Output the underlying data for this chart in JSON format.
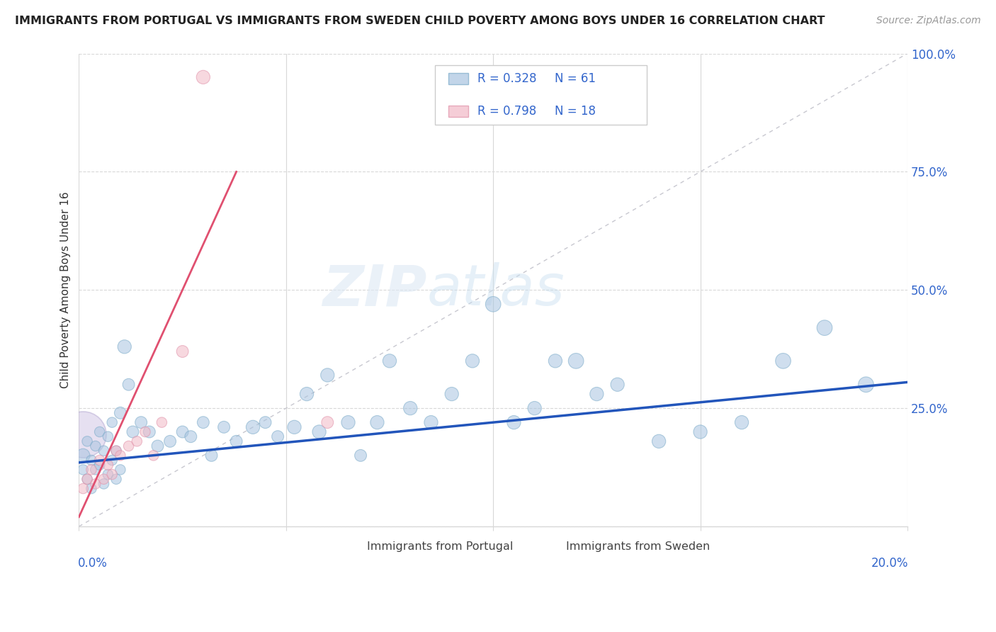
{
  "title": "IMMIGRANTS FROM PORTUGAL VS IMMIGRANTS FROM SWEDEN CHILD POVERTY AMONG BOYS UNDER 16 CORRELATION CHART",
  "source": "Source: ZipAtlas.com",
  "ylabel": "Child Poverty Among Boys Under 16",
  "xlim": [
    0.0,
    0.2
  ],
  "ylim": [
    0.0,
    1.0
  ],
  "R_portugal": 0.328,
  "N_portugal": 61,
  "R_sweden": 0.798,
  "N_sweden": 18,
  "blue_color": "#a8c4e0",
  "blue_edge_color": "#7aaac8",
  "pink_color": "#f2b8c6",
  "pink_edge_color": "#e090a8",
  "blue_line_color": "#2255bb",
  "pink_line_color": "#e05070",
  "legend_text_color": "#3366cc",
  "grid_color": "#d8d8d8",
  "ref_line_color": "#c8c8d0",
  "portugal_x": [
    0.001,
    0.001,
    0.002,
    0.002,
    0.003,
    0.003,
    0.004,
    0.004,
    0.005,
    0.005,
    0.006,
    0.006,
    0.007,
    0.007,
    0.008,
    0.008,
    0.009,
    0.009,
    0.01,
    0.01,
    0.011,
    0.012,
    0.013,
    0.015,
    0.017,
    0.019,
    0.022,
    0.025,
    0.027,
    0.03,
    0.032,
    0.035,
    0.038,
    0.042,
    0.045,
    0.048,
    0.052,
    0.055,
    0.058,
    0.06,
    0.065,
    0.068,
    0.072,
    0.075,
    0.08,
    0.085,
    0.09,
    0.095,
    0.1,
    0.105,
    0.11,
    0.115,
    0.12,
    0.125,
    0.13,
    0.14,
    0.15,
    0.16,
    0.17,
    0.18,
    0.19
  ],
  "portugal_y": [
    0.15,
    0.12,
    0.18,
    0.1,
    0.14,
    0.08,
    0.17,
    0.12,
    0.2,
    0.13,
    0.16,
    0.09,
    0.19,
    0.11,
    0.22,
    0.14,
    0.16,
    0.1,
    0.24,
    0.12,
    0.38,
    0.3,
    0.2,
    0.22,
    0.2,
    0.17,
    0.18,
    0.2,
    0.19,
    0.22,
    0.15,
    0.21,
    0.18,
    0.21,
    0.22,
    0.19,
    0.21,
    0.28,
    0.2,
    0.32,
    0.22,
    0.15,
    0.22,
    0.35,
    0.25,
    0.22,
    0.28,
    0.35,
    0.47,
    0.22,
    0.25,
    0.35,
    0.35,
    0.28,
    0.3,
    0.18,
    0.2,
    0.22,
    0.35,
    0.42,
    0.3
  ],
  "portugal_sizes": [
    8,
    6,
    6,
    6,
    6,
    6,
    6,
    6,
    6,
    6,
    6,
    6,
    6,
    6,
    6,
    6,
    6,
    6,
    7,
    6,
    8,
    7,
    7,
    7,
    7,
    7,
    7,
    7,
    7,
    7,
    7,
    7,
    7,
    8,
    7,
    7,
    8,
    8,
    8,
    8,
    8,
    7,
    8,
    8,
    8,
    8,
    8,
    8,
    9,
    8,
    8,
    8,
    9,
    8,
    8,
    8,
    8,
    8,
    9,
    9,
    9
  ],
  "portugal_big_x": [
    0.001
  ],
  "portugal_big_y": [
    0.195
  ],
  "portugal_big_size": [
    35
  ],
  "sweden_x": [
    0.001,
    0.002,
    0.003,
    0.004,
    0.005,
    0.006,
    0.007,
    0.008,
    0.009,
    0.01,
    0.012,
    0.014,
    0.016,
    0.018,
    0.02,
    0.025,
    0.03,
    0.06
  ],
  "sweden_y": [
    0.08,
    0.1,
    0.12,
    0.09,
    0.14,
    0.1,
    0.13,
    0.11,
    0.16,
    0.15,
    0.17,
    0.18,
    0.2,
    0.15,
    0.22,
    0.37,
    0.95,
    0.22
  ],
  "sweden_sizes": [
    6,
    6,
    6,
    6,
    6,
    6,
    6,
    6,
    6,
    6,
    6,
    6,
    6,
    6,
    6,
    7,
    8,
    7
  ],
  "sweden_big_x": [
    0.001
  ],
  "sweden_big_y": [
    0.195
  ],
  "sweden_big_size": [
    28
  ]
}
